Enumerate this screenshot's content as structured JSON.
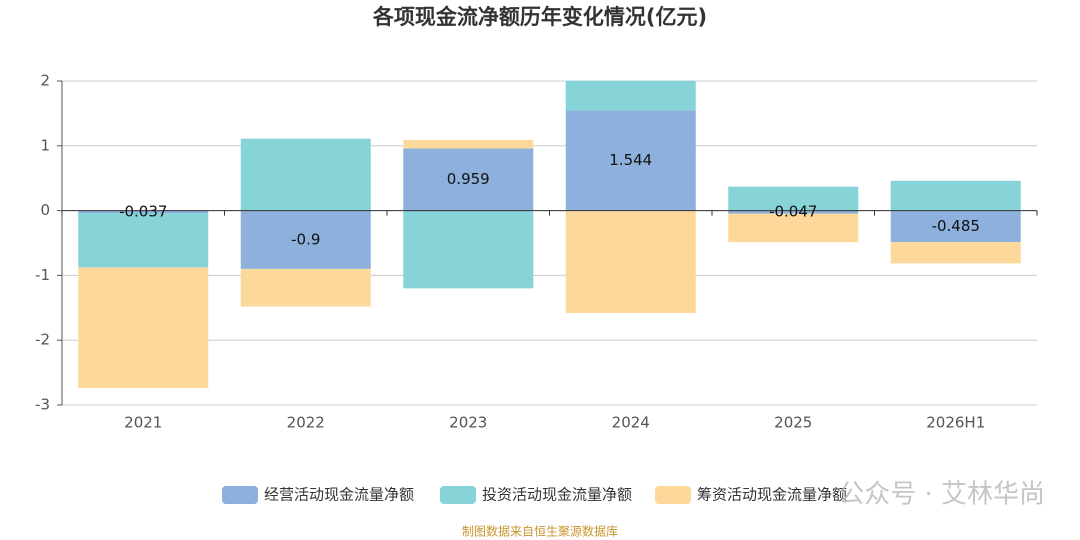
{
  "chart_data": {
    "type": "stacked-bar",
    "title": "各项现金流净额历年变化情况(亿元)",
    "categories": [
      "2021",
      "2022",
      "2023",
      "2024",
      "2025",
      "2026H1"
    ],
    "series": [
      {
        "name": "经营活动现金流量净额",
        "color": "#8eb0dc",
        "values": [
          -0.037,
          -0.9,
          0.959,
          1.544,
          -0.047,
          -0.485
        ]
      },
      {
        "name": "投资活动现金流量净额",
        "color": "#86d4d8",
        "values": [
          -0.84,
          1.11,
          -1.2,
          0.46,
          0.37,
          0.46
        ]
      },
      {
        "name": "筹资活动现金流量净额",
        "color": "#fdd89b",
        "values": [
          -1.86,
          -0.58,
          0.13,
          -1.58,
          -0.44,
          -0.33
        ]
      }
    ],
    "ylim": [
      -3,
      2
    ],
    "yticks": [
      -3,
      -2,
      -1,
      0,
      1,
      2
    ],
    "grid": true,
    "label_series": 0,
    "legend": "bottom",
    "watermark": "公众号 · 艾林华尚",
    "source": "制图数据来自恒生聚源数据库"
  }
}
